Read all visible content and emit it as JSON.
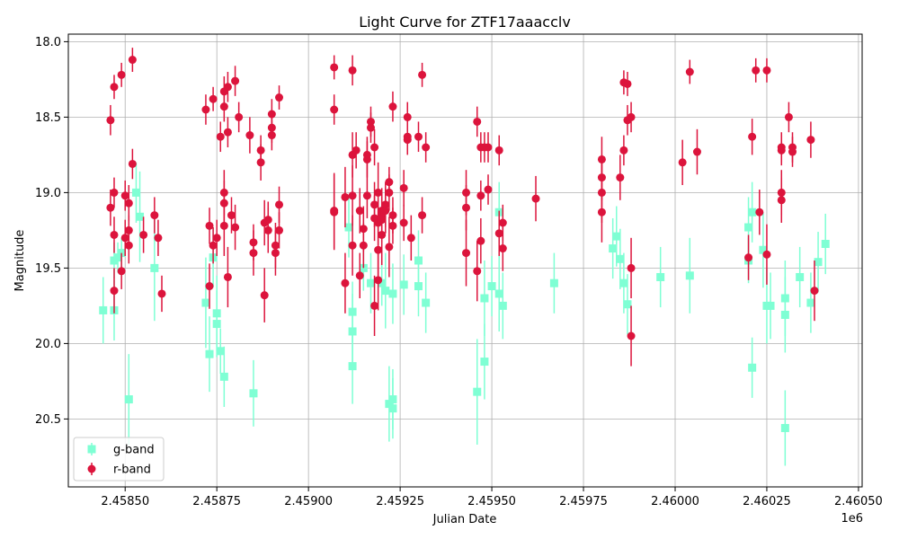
{
  "chart_data": {
    "type": "scatter",
    "title": "Light Curve for ZTF17aaacclv",
    "xlabel": "Julian Date",
    "ylabel": "Magnitude",
    "x_offset_label": "1e6",
    "xlim": [
      2.458345,
      2.46051
    ],
    "ylim": [
      20.95,
      17.95
    ],
    "y_inverted": true,
    "grid": true,
    "legend_position": "lower-left",
    "x_ticks": [
      2.4585,
      2.45875,
      2.459,
      2.45925,
      2.4595,
      2.45975,
      2.46,
      2.46025,
      2.4605
    ],
    "x_tick_labels": [
      "2.45850",
      "2.45875",
      "2.45900",
      "2.45925",
      "2.45950",
      "2.45975",
      "2.46000",
      "2.46025",
      "2.46050"
    ],
    "y_ticks": [
      18.0,
      18.5,
      19.0,
      19.5,
      20.0,
      20.5
    ],
    "y_tick_labels": [
      "18.0",
      "18.5",
      "19.0",
      "19.5",
      "20.0",
      "20.5"
    ],
    "series": [
      {
        "name": "g-band",
        "color": "#7fffd4",
        "marker": "square",
        "points": [
          [
            2.45844,
            19.78,
            0.22
          ],
          [
            2.45847,
            19.78,
            0.2
          ],
          [
            2.45847,
            19.45,
            0.12
          ],
          [
            2.45848,
            19.43,
            0.1
          ],
          [
            2.45849,
            19.4,
            0.1
          ],
          [
            2.45851,
            20.37,
            0.3
          ],
          [
            2.45853,
            19.0,
            0.2
          ],
          [
            2.45854,
            19.16,
            0.3
          ],
          [
            2.45858,
            19.5,
            0.35
          ],
          [
            2.45872,
            19.73,
            0.3
          ],
          [
            2.45873,
            20.07,
            0.25
          ],
          [
            2.45874,
            19.43,
            0.2
          ],
          [
            2.45875,
            19.8,
            0.25
          ],
          [
            2.45875,
            19.87,
            0.22
          ],
          [
            2.45876,
            20.05,
            0.15
          ],
          [
            2.45877,
            20.22,
            0.2
          ],
          [
            2.45885,
            20.33,
            0.22
          ],
          [
            2.45911,
            19.23,
            0.2
          ],
          [
            2.45912,
            19.79,
            0.2
          ],
          [
            2.45912,
            19.92,
            0.25
          ],
          [
            2.45912,
            20.15,
            0.25
          ],
          [
            2.45915,
            19.5,
            0.15
          ],
          [
            2.45917,
            19.6,
            0.2
          ],
          [
            2.4592,
            19.6,
            0.15
          ],
          [
            2.45921,
            19.65,
            0.25
          ],
          [
            2.45922,
            20.4,
            0.25
          ],
          [
            2.45923,
            20.37,
            0.2
          ],
          [
            2.45923,
            20.43,
            0.2
          ],
          [
            2.45923,
            19.67,
            0.2
          ],
          [
            2.45926,
            19.61,
            0.2
          ],
          [
            2.4593,
            19.45,
            0.2
          ],
          [
            2.4593,
            19.62,
            0.2
          ],
          [
            2.45932,
            19.73,
            0.2
          ],
          [
            2.45946,
            20.32,
            0.35
          ],
          [
            2.45948,
            20.12,
            0.25
          ],
          [
            2.45948,
            19.7,
            0.25
          ],
          [
            2.4595,
            19.62,
            0.2
          ],
          [
            2.45952,
            19.67,
            0.25
          ],
          [
            2.45952,
            19.13,
            0.2
          ],
          [
            2.45953,
            19.75,
            0.22
          ],
          [
            2.45967,
            19.6,
            0.2
          ],
          [
            2.45983,
            19.37,
            0.2
          ],
          [
            2.45984,
            19.29,
            0.2
          ],
          [
            2.45985,
            19.44,
            0.2
          ],
          [
            2.45986,
            19.6,
            0.2
          ],
          [
            2.45987,
            19.74,
            0.2
          ],
          [
            2.45996,
            19.56,
            0.2
          ],
          [
            2.46004,
            19.55,
            0.25
          ],
          [
            2.4602,
            19.23,
            0.2
          ],
          [
            2.4602,
            19.45,
            0.15
          ],
          [
            2.46021,
            19.13,
            0.2
          ],
          [
            2.46021,
            20.16,
            0.2
          ],
          [
            2.46024,
            19.38,
            0.25
          ],
          [
            2.46025,
            19.75,
            0.25
          ],
          [
            2.46026,
            19.75,
            0.22
          ],
          [
            2.4603,
            19.7,
            0.25
          ],
          [
            2.4603,
            19.81,
            0.25
          ],
          [
            2.4603,
            20.56,
            0.25
          ],
          [
            2.46034,
            19.56,
            0.2
          ],
          [
            2.46037,
            19.73,
            0.2
          ],
          [
            2.46039,
            19.46,
            0.2
          ],
          [
            2.46041,
            19.34,
            0.2
          ]
        ]
      },
      {
        "name": "r-band",
        "color": "#dc143c",
        "marker": "circle",
        "points": [
          [
            2.45846,
            19.1,
            0.12
          ],
          [
            2.45846,
            18.52,
            0.1
          ],
          [
            2.45847,
            18.3,
            0.08
          ],
          [
            2.45847,
            19.0,
            0.1
          ],
          [
            2.45847,
            19.28,
            0.12
          ],
          [
            2.45847,
            19.65,
            0.15
          ],
          [
            2.45849,
            19.52,
            0.12
          ],
          [
            2.45849,
            18.22,
            0.08
          ],
          [
            2.4585,
            19.3,
            0.12
          ],
          [
            2.4585,
            19.02,
            0.1
          ],
          [
            2.45851,
            19.35,
            0.12
          ],
          [
            2.45851,
            19.25,
            0.1
          ],
          [
            2.45851,
            19.07,
            0.12
          ],
          [
            2.45852,
            18.81,
            0.1
          ],
          [
            2.45852,
            18.12,
            0.08
          ],
          [
            2.45855,
            19.28,
            0.12
          ],
          [
            2.45858,
            19.15,
            0.12
          ],
          [
            2.45859,
            19.3,
            0.12
          ],
          [
            2.4586,
            19.67,
            0.12
          ],
          [
            2.45872,
            18.45,
            0.1
          ],
          [
            2.45873,
            19.62,
            0.15
          ],
          [
            2.45873,
            19.22,
            0.12
          ],
          [
            2.45874,
            18.38,
            0.08
          ],
          [
            2.45874,
            19.35,
            0.12
          ],
          [
            2.45875,
            19.3,
            0.12
          ],
          [
            2.45876,
            18.63,
            0.1
          ],
          [
            2.45877,
            18.43,
            0.1
          ],
          [
            2.45877,
            18.33,
            0.1
          ],
          [
            2.45877,
            19.0,
            0.15
          ],
          [
            2.45877,
            19.07,
            0.15
          ],
          [
            2.45877,
            19.22,
            0.2
          ],
          [
            2.45878,
            19.56,
            0.2
          ],
          [
            2.45878,
            18.3,
            0.1
          ],
          [
            2.45878,
            18.6,
            0.1
          ],
          [
            2.45879,
            19.15,
            0.12
          ],
          [
            2.4588,
            19.23,
            0.15
          ],
          [
            2.4588,
            18.26,
            0.1
          ],
          [
            2.45881,
            18.5,
            0.1
          ],
          [
            2.45884,
            18.62,
            0.12
          ],
          [
            2.45885,
            19.4,
            0.15
          ],
          [
            2.45885,
            19.33,
            0.12
          ],
          [
            2.45887,
            18.8,
            0.12
          ],
          [
            2.45887,
            18.72,
            0.1
          ],
          [
            2.45888,
            19.68,
            0.18
          ],
          [
            2.45888,
            19.2,
            0.15
          ],
          [
            2.45889,
            19.25,
            0.15
          ],
          [
            2.45889,
            19.18,
            0.12
          ],
          [
            2.4589,
            18.57,
            0.1
          ],
          [
            2.4589,
            18.62,
            0.1
          ],
          [
            2.4589,
            18.48,
            0.1
          ],
          [
            2.45891,
            19.35,
            0.15
          ],
          [
            2.45891,
            19.4,
            0.15
          ],
          [
            2.45892,
            19.08,
            0.12
          ],
          [
            2.45892,
            19.25,
            0.12
          ],
          [
            2.45892,
            18.37,
            0.08
          ],
          [
            2.45907,
            19.12,
            0.25
          ],
          [
            2.45907,
            19.13,
            0.25
          ],
          [
            2.45907,
            18.17,
            0.08
          ],
          [
            2.45907,
            18.45,
            0.1
          ],
          [
            2.4591,
            19.6,
            0.2
          ],
          [
            2.4591,
            19.03,
            0.2
          ],
          [
            2.45912,
            19.35,
            0.2
          ],
          [
            2.45912,
            18.75,
            0.15
          ],
          [
            2.45912,
            18.19,
            0.1
          ],
          [
            2.45912,
            19.02,
            0.2
          ],
          [
            2.45913,
            18.72,
            0.12
          ],
          [
            2.45914,
            19.12,
            0.15
          ],
          [
            2.45914,
            19.55,
            0.15
          ],
          [
            2.45915,
            19.35,
            0.15
          ],
          [
            2.45915,
            19.24,
            0.15
          ],
          [
            2.45916,
            18.78,
            0.12
          ],
          [
            2.45916,
            18.75,
            0.12
          ],
          [
            2.45916,
            19.02,
            0.15
          ],
          [
            2.45917,
            18.53,
            0.1
          ],
          [
            2.45917,
            18.57,
            0.1
          ],
          [
            2.45918,
            18.7,
            0.12
          ],
          [
            2.45918,
            19.08,
            0.15
          ],
          [
            2.45918,
            19.17,
            0.15
          ],
          [
            2.45918,
            19.75,
            0.2
          ],
          [
            2.45919,
            19.2,
            0.15
          ],
          [
            2.45919,
            19.0,
            0.2
          ],
          [
            2.45919,
            19.58,
            0.2
          ],
          [
            2.45919,
            19.38,
            0.2
          ],
          [
            2.4592,
            19.12,
            0.15
          ],
          [
            2.4592,
            19.15,
            0.15
          ],
          [
            2.4592,
            19.28,
            0.2
          ],
          [
            2.4592,
            19.18,
            0.15
          ],
          [
            2.45921,
            19.08,
            0.15
          ],
          [
            2.45921,
            19.12,
            0.15
          ],
          [
            2.45922,
            18.93,
            0.1
          ],
          [
            2.45922,
            19.0,
            0.12
          ],
          [
            2.45922,
            19.36,
            0.2
          ],
          [
            2.45923,
            19.15,
            0.12
          ],
          [
            2.45923,
            19.22,
            0.12
          ],
          [
            2.45923,
            18.43,
            0.1
          ],
          [
            2.45926,
            18.97,
            0.12
          ],
          [
            2.45926,
            19.2,
            0.12
          ],
          [
            2.45927,
            18.5,
            0.1
          ],
          [
            2.45927,
            18.63,
            0.1
          ],
          [
            2.45927,
            18.65,
            0.1
          ],
          [
            2.45928,
            19.3,
            0.15
          ],
          [
            2.4593,
            18.63,
            0.1
          ],
          [
            2.45931,
            18.22,
            0.08
          ],
          [
            2.45931,
            19.15,
            0.12
          ],
          [
            2.45932,
            18.7,
            0.1
          ],
          [
            2.45943,
            19.1,
            0.15
          ],
          [
            2.45943,
            19.0,
            0.15
          ],
          [
            2.45943,
            19.4,
            0.22
          ],
          [
            2.45946,
            19.52,
            0.2
          ],
          [
            2.45946,
            18.53,
            0.1
          ],
          [
            2.45947,
            19.32,
            0.15
          ],
          [
            2.45947,
            18.7,
            0.1
          ],
          [
            2.45947,
            19.02,
            0.1
          ],
          [
            2.45948,
            18.7,
            0.1
          ],
          [
            2.45949,
            18.98,
            0.1
          ],
          [
            2.45949,
            18.7,
            0.1
          ],
          [
            2.45952,
            19.27,
            0.15
          ],
          [
            2.45952,
            18.72,
            0.1
          ],
          [
            2.45953,
            19.2,
            0.12
          ],
          [
            2.45953,
            19.37,
            0.15
          ],
          [
            2.45962,
            19.04,
            0.15
          ],
          [
            2.4598,
            18.78,
            0.15
          ],
          [
            2.4598,
            18.9,
            0.15
          ],
          [
            2.4598,
            19.0,
            0.2
          ],
          [
            2.4598,
            19.13,
            0.2
          ],
          [
            2.45985,
            18.9,
            0.15
          ],
          [
            2.45986,
            18.72,
            0.1
          ],
          [
            2.45986,
            18.27,
            0.08
          ],
          [
            2.45987,
            18.28,
            0.08
          ],
          [
            2.45987,
            18.52,
            0.1
          ],
          [
            2.45988,
            18.5,
            0.1
          ],
          [
            2.45988,
            19.5,
            0.2
          ],
          [
            2.45988,
            19.95,
            0.2
          ],
          [
            2.46002,
            18.8,
            0.15
          ],
          [
            2.46004,
            18.2,
            0.08
          ],
          [
            2.46006,
            18.73,
            0.15
          ],
          [
            2.4602,
            19.43,
            0.15
          ],
          [
            2.46021,
            18.63,
            0.12
          ],
          [
            2.46022,
            18.19,
            0.08
          ],
          [
            2.46023,
            19.13,
            0.15
          ],
          [
            2.46025,
            18.19,
            0.08
          ],
          [
            2.46025,
            19.41,
            0.2
          ],
          [
            2.46029,
            19.0,
            0.15
          ],
          [
            2.46029,
            19.05,
            0.15
          ],
          [
            2.46029,
            18.7,
            0.1
          ],
          [
            2.46029,
            18.72,
            0.1
          ],
          [
            2.46031,
            18.5,
            0.1
          ],
          [
            2.46032,
            18.73,
            0.1
          ],
          [
            2.46032,
            18.7,
            0.1
          ],
          [
            2.46037,
            18.65,
            0.12
          ],
          [
            2.46038,
            19.65,
            0.2
          ]
        ]
      }
    ]
  }
}
